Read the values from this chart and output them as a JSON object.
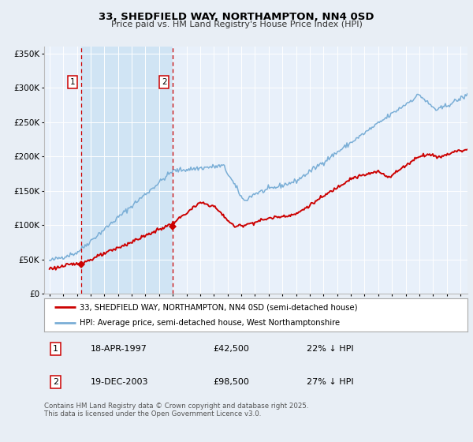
{
  "title1": "33, SHEDFIELD WAY, NORTHAMPTON, NN4 0SD",
  "title2": "Price paid vs. HM Land Registry's House Price Index (HPI)",
  "legend_line1": "33, SHEDFIELD WAY, NORTHAMPTON, NN4 0SD (semi-detached house)",
  "legend_line2": "HPI: Average price, semi-detached house, West Northamptonshire",
  "sale1_label": "1",
  "sale1_date": "18-APR-1997",
  "sale1_price": "£42,500",
  "sale1_hpi": "22% ↓ HPI",
  "sale2_label": "2",
  "sale2_date": "19-DEC-2003",
  "sale2_price": "£98,500",
  "sale2_hpi": "27% ↓ HPI",
  "sale1_x": 1997.3,
  "sale2_x": 2003.97,
  "sale1_y": 42500,
  "sale2_y": 98500,
  "vline1_x": 1997.3,
  "vline2_x": 2003.97,
  "ylim": [
    0,
    360000
  ],
  "xlim": [
    1994.6,
    2025.5
  ],
  "fig_bg": "#e8eef5",
  "plot_bg": "#e8f0fa",
  "shade_color": "#d0e4f4",
  "red_line_color": "#cc0000",
  "blue_line_color": "#7aaed6",
  "vline_color": "#cc0000",
  "footer": "Contains HM Land Registry data © Crown copyright and database right 2025.\nThis data is licensed under the Open Government Licence v3.0."
}
